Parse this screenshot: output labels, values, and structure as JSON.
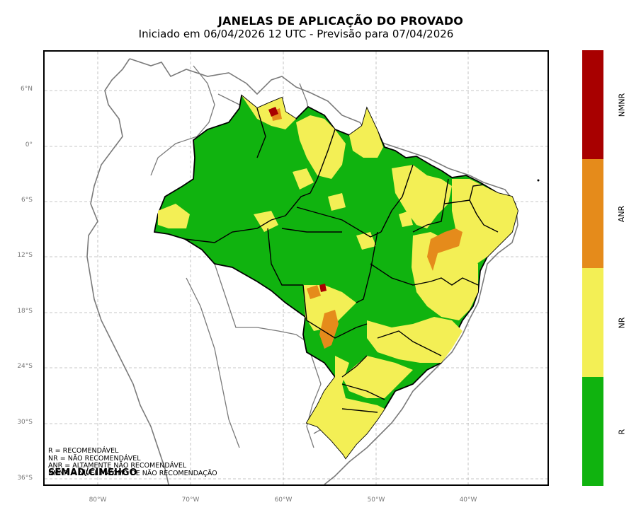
{
  "title": "JANELAS DE APLICAÇÃO DO PROVADO",
  "subtitle": "Iniciado em 06/04/2026 12 UTC - Previsão para 07/04/2026",
  "map": {
    "lat_ticks": [
      "6°N",
      "0°",
      "6°S",
      "12°S",
      "18°S",
      "24°S",
      "30°S",
      "36°S"
    ],
    "lon_ticks": [
      "80°W",
      "70°W",
      "60°W",
      "50°W",
      "40°W"
    ],
    "grid": "dashed",
    "extent": {
      "lon_min": -85.8,
      "lon_max": -31.3,
      "lat_min": -36.8,
      "lat_max": 10.2
    }
  },
  "legend_text": [
    "R = RECOMENDÁVEL",
    "NR = NÃO RECOMENDÁVEL",
    "ANR = ALTAMENTE NÃO RECOMENDÁVEL",
    "NMNR = NÍVEL MÁXIMO DE NÃO RECOMENDAÇÃO"
  ],
  "credit": "SEMAD/CIMEHGO",
  "colorbar": {
    "classes": [
      {
        "label": "NMNR",
        "color": "#a80000"
      },
      {
        "label": "ANR",
        "color": "#e58b1b"
      },
      {
        "label": "NR",
        "color": "#f3ef55"
      },
      {
        "label": "R",
        "color": "#10b30f"
      }
    ]
  },
  "palette": {
    "R": "#10b30f",
    "NR": "#f3ef55",
    "ANR": "#e58b1b",
    "NMNR": "#a80000"
  }
}
